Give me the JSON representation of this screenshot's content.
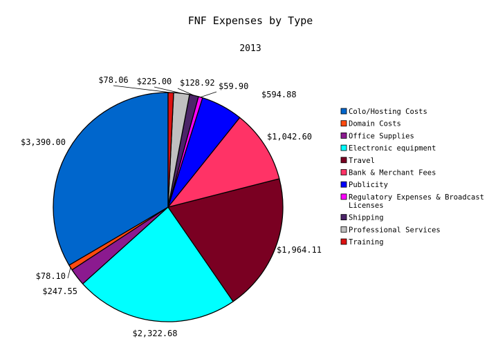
{
  "chart_data": {
    "type": "pie",
    "title": "FNF Expenses by Type",
    "subtitle": "2013",
    "legend_position": "right",
    "slices": [
      {
        "name": "Colo/Hosting Costs",
        "value": 3390.0,
        "label": "$3,390.00",
        "color": "#0066cc"
      },
      {
        "name": "Domain Costs",
        "value": 78.1,
        "label": "$78.10",
        "color": "#ff4a0f"
      },
      {
        "name": "Office Supplies",
        "value": 247.55,
        "label": "$247.55",
        "color": "#8b1a8f"
      },
      {
        "name": "Electronic equipment",
        "value": 2322.68,
        "label": "$2,322.68",
        "color": "#00ffff"
      },
      {
        "name": "Travel",
        "value": 1964.11,
        "label": "$1,964.11",
        "color": "#7a0022"
      },
      {
        "name": "Bank & Merchant Fees",
        "value": 1042.6,
        "label": "$1,042.60",
        "color": "#ff3366"
      },
      {
        "name": "Publicity",
        "value": 594.88,
        "label": "$594.88",
        "color": "#0000ff"
      },
      {
        "name": "Regulatory Expenses & Broadcast Licenses",
        "legend_lines": [
          "Regulatory Expenses & Broadcast",
          "Licenses"
        ],
        "value": 59.9,
        "label": "$59.90",
        "color": "#ff00ff"
      },
      {
        "name": "Shipping",
        "value": 128.92,
        "label": "$128.92",
        "color": "#4b2468"
      },
      {
        "name": "Professional Services",
        "value": 225.0,
        "label": "$225.00",
        "color": "#c0c0c0"
      },
      {
        "name": "Training",
        "value": 78.06,
        "label": "$78.06",
        "color": "#dd1111"
      }
    ]
  }
}
